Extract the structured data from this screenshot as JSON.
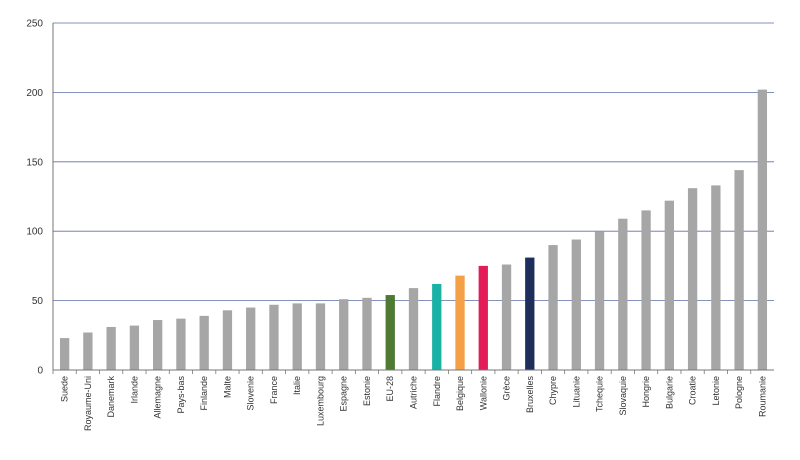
{
  "chart_data": {
    "type": "bar",
    "title": "",
    "xlabel": "",
    "ylabel": "",
    "ylim": [
      0,
      250
    ],
    "yticks": [
      0,
      50,
      100,
      150,
      200,
      250
    ],
    "grid": true,
    "legend": "none",
    "categories": [
      "Suede",
      "Royaume-Uni",
      "Danemark",
      "Irlande",
      "Allemagne",
      "Pays-bas",
      "Finlande",
      "Malte",
      "Slovenie",
      "France",
      "Italie",
      "Luxembourg",
      "Espagne",
      "Estonie",
      "EU-28",
      "Autriche",
      "Flandre",
      "Belgique",
      "Wallonie",
      "Grèce",
      "Bruxelles",
      "Chypre",
      "Lituanie",
      "Tchequie",
      "Slovaquie",
      "Hongrie",
      "Bulgarie",
      "Croatie",
      "Letonie",
      "Pologne",
      "Roumanie"
    ],
    "values": [
      23,
      27,
      31,
      32,
      36,
      37,
      39,
      43,
      45,
      47,
      48,
      48,
      51,
      52,
      54,
      59,
      62,
      68,
      75,
      76,
      81,
      90,
      94,
      100,
      109,
      115,
      122,
      131,
      133,
      144,
      202
    ],
    "colors": {
      "default": "#a6a6a6",
      "EU-28": "#4f7a34",
      "Flandre": "#1ab2a4",
      "Belgique": "#f4a046",
      "Wallonie": "#e31b56",
      "Bruxelles": "#1f2d5a"
    },
    "grid_color": "#5d6fa8",
    "axis_color": "#777777"
  }
}
